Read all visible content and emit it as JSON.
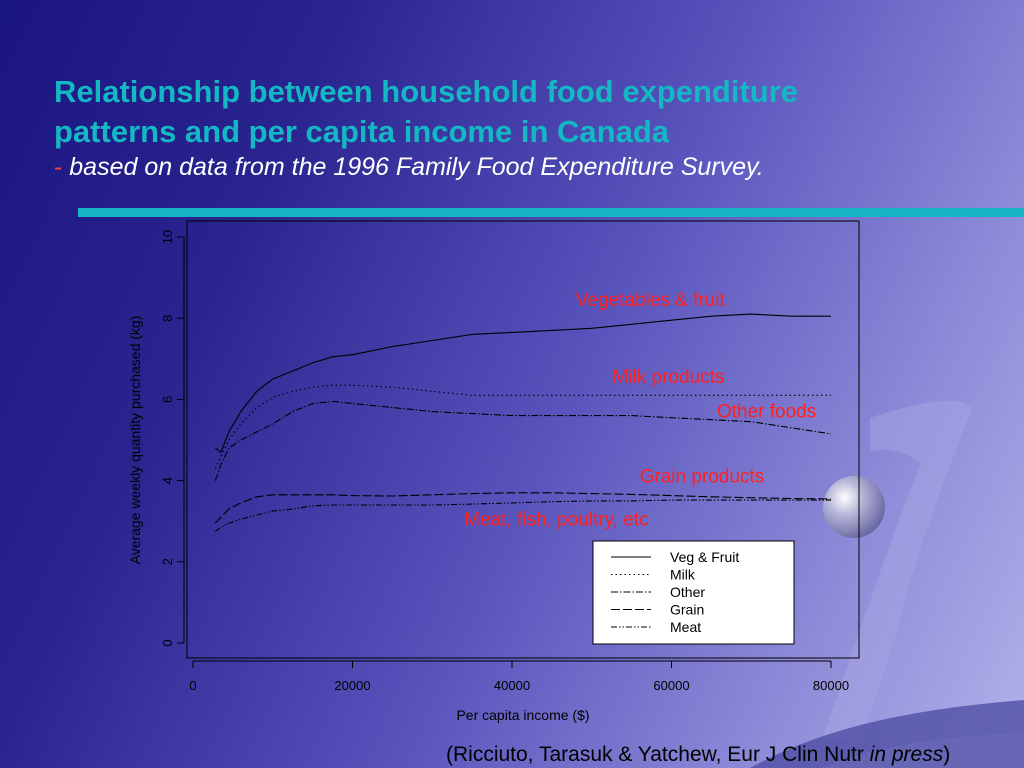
{
  "slide": {
    "title_line1": "Relationship between household food expenditure",
    "title_line2": "patterns and per capita income in Canada",
    "subtitle_dash": "-",
    "subtitle": "based on data from the 1996 Family Food Expenditure Survey.",
    "citation_prefix": "(Ricciuto, Tarasuk & Yatchew, Eur J Clin Nutr ",
    "citation_italic": "in press",
    "citation_suffix": ")",
    "colors": {
      "title": "#13b8c4",
      "accent_bar": "#19b5c7",
      "annotation": "#ff2020"
    }
  },
  "chart_data": {
    "type": "line",
    "xlabel": "Per capita income ($)",
    "ylabel": "Average weekly quantity purchased (kg)",
    "xlim": [
      0,
      80000
    ],
    "ylim": [
      0,
      10
    ],
    "x_ticks": [
      0,
      20000,
      40000,
      60000,
      80000
    ],
    "y_ticks": [
      0,
      2,
      4,
      6,
      8,
      10
    ],
    "x_tick_labels": [
      "0",
      "20000",
      "40000",
      "60000",
      "80000"
    ],
    "y_tick_labels": [
      "0",
      "2",
      "4",
      "6",
      "8",
      "10"
    ],
    "grid": false,
    "legend_position": "bottom-right",
    "x": [
      2800,
      3500,
      4500,
      6000,
      8000,
      10000,
      12500,
      15000,
      17500,
      20000,
      25000,
      30000,
      35000,
      40000,
      45000,
      50000,
      55000,
      60000,
      65000,
      70000,
      75000,
      80000
    ],
    "series": [
      {
        "name": "Veg & Fruit",
        "dash": "",
        "annotation": "Vegetables & fruit",
        "annot_x": 48000,
        "annot_y": 8.3,
        "values": [
          4.8,
          4.7,
          5.2,
          5.7,
          6.2,
          6.5,
          6.7,
          6.9,
          7.05,
          7.1,
          7.3,
          7.45,
          7.6,
          7.65,
          7.7,
          7.75,
          7.85,
          7.95,
          8.05,
          8.1,
          8.05,
          8.05
        ]
      },
      {
        "name": "Milk",
        "dash": "1.5,3",
        "annotation": "Milk products",
        "annot_x": 52600,
        "annot_y": 6.4,
        "values": [
          4.3,
          4.6,
          5.0,
          5.4,
          5.8,
          6.05,
          6.2,
          6.3,
          6.35,
          6.35,
          6.3,
          6.2,
          6.1,
          6.1,
          6.1,
          6.1,
          6.1,
          6.1,
          6.1,
          6.1,
          6.1,
          6.1
        ]
      },
      {
        "name": "Other",
        "dash": "7,2,1.5,2",
        "annotation": "Other foods",
        "annot_x": 65700,
        "annot_y": 5.55,
        "values": [
          4.0,
          4.4,
          4.8,
          5.0,
          5.2,
          5.4,
          5.7,
          5.9,
          5.95,
          5.9,
          5.8,
          5.7,
          5.65,
          5.6,
          5.6,
          5.6,
          5.6,
          5.55,
          5.5,
          5.45,
          5.3,
          5.15
        ]
      },
      {
        "name": "Grain",
        "dash": "9,3",
        "annotation": "Grain products",
        "annot_x": 56000,
        "annot_y": 3.95,
        "values": [
          2.95,
          3.1,
          3.3,
          3.45,
          3.6,
          3.65,
          3.65,
          3.65,
          3.65,
          3.63,
          3.62,
          3.65,
          3.68,
          3.7,
          3.7,
          3.68,
          3.66,
          3.63,
          3.6,
          3.58,
          3.56,
          3.55
        ]
      },
      {
        "name": "Meat",
        "dash": "6,2,1.5,2,1.5,2",
        "annotation": "Meat, fish, poultry, etc",
        "annot_x": 34000,
        "annot_y": 2.9,
        "values": [
          2.75,
          2.85,
          2.95,
          3.05,
          3.15,
          3.25,
          3.3,
          3.38,
          3.4,
          3.4,
          3.4,
          3.4,
          3.42,
          3.45,
          3.48,
          3.5,
          3.5,
          3.52,
          3.52,
          3.52,
          3.52,
          3.52
        ]
      }
    ]
  }
}
